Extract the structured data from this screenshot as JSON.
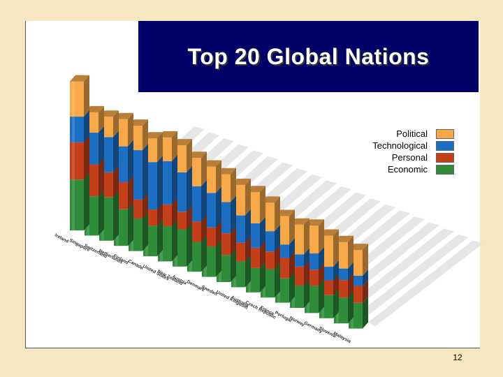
{
  "slide": {
    "title": "Top 20 Global Nations",
    "page_number": "12"
  },
  "colors": {
    "political": "#f7a94a",
    "technological": "#1d6fc4",
    "personal": "#c4401b",
    "economic": "#2e8c3a",
    "title_bg": "#000066"
  },
  "legend": [
    {
      "name": "Political",
      "color": "#f7a94a"
    },
    {
      "name": "Technological",
      "color": "#1d6fc4"
    },
    {
      "name": "Personal",
      "color": "#c4401b"
    },
    {
      "name": "Economic",
      "color": "#2e8c3a"
    }
  ],
  "chart_data": {
    "type": "bar",
    "stacked": true,
    "title": "Top 20 Global Nations",
    "categories": [
      "Ireland",
      "Singapore",
      "Switzerland",
      "Netherlands",
      "Finland",
      "Canada",
      "United States",
      "New Zealand",
      "Austria",
      "Denmark",
      "Sweden",
      "United Kingdom",
      "Australia",
      "Czech Republic",
      "France",
      "Portugal",
      "Norway",
      "Germany",
      "Slovenia",
      "Malaysia"
    ],
    "series": [
      {
        "name": "Economic",
        "values": [
          75,
          58,
          64,
          54,
          48,
          45,
          52,
          55,
          44,
          45,
          40,
          38,
          36,
          42,
          36,
          33,
          40,
          34,
          38,
          38
        ]
      },
      {
        "name": "Personal",
        "values": [
          55,
          47,
          37,
          40,
          28,
          24,
          32,
          26,
          30,
          28,
          32,
          28,
          30,
          26,
          30,
          28,
          24,
          22,
          26,
          25
        ]
      },
      {
        "name": "Technological",
        "values": [
          38,
          47,
          52,
          53,
          73,
          70,
          64,
          58,
          52,
          51,
          46,
          40,
          36,
          30,
          20,
          18,
          24,
          20,
          17,
          15
        ]
      },
      {
        "name": "Political",
        "values": [
          52,
          30,
          30,
          40,
          36,
          35,
          35,
          40,
          42,
          39,
          41,
          45,
          46,
          42,
          42,
          44,
          41,
          46,
          39,
          38
        ]
      }
    ],
    "legend_position": "right",
    "grid": false
  }
}
